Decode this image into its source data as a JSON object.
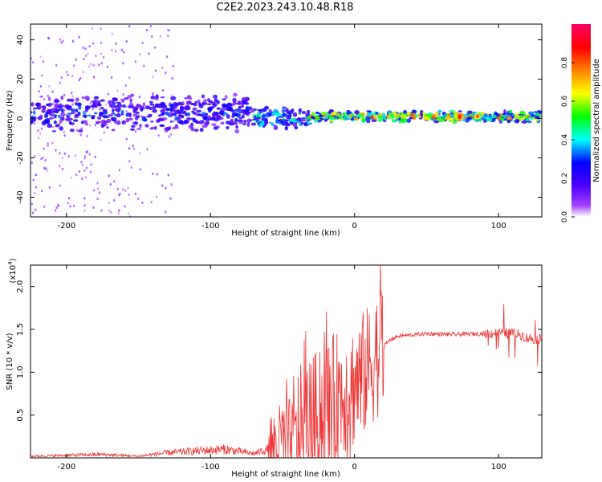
{
  "chart_data": [
    {
      "type": "heatmap",
      "title": "C2E2.2023.243.10.48.R18",
      "xlabel": "Height of straight line (km)",
      "ylabel": "Frequency (Hz)",
      "xlim": [
        -225,
        130
      ],
      "ylim": [
        -50,
        48
      ],
      "x_ticks": [
        -200,
        -100,
        0,
        100
      ],
      "y_ticks": [
        -40,
        -20,
        0,
        20,
        40
      ],
      "colorbar": {
        "label": "Normalized spectral amplitude",
        "range": [
          0.0,
          1.0
        ],
        "ticks": [
          0.0,
          0.2,
          0.4,
          0.6,
          0.8
        ],
        "colormap": [
          "#ffffff",
          "#8a00ff",
          "#0000ff",
          "#00ffff",
          "#00ff00",
          "#ffff00",
          "#ff8000",
          "#ff0000",
          "#ff0066"
        ]
      },
      "features": [
        {
          "x_range": [
            -225,
            -70
          ],
          "freq_center": 3,
          "freq_width": 10,
          "amplitude": 0.3
        },
        {
          "x_range": [
            -70,
            -30
          ],
          "freq_center": 0,
          "freq_width": 6,
          "amplitude": 0.45
        },
        {
          "x_range": [
            -30,
            130
          ],
          "freq_center": 1,
          "freq_width": 3,
          "amplitude": 0.75
        }
      ]
    },
    {
      "type": "line",
      "xlabel": "Height of straight line (km)",
      "ylabel": "SNR (10 * v/v)",
      "y_multiplier": "(x10",
      "y_multiplier_exp": "4",
      "xlim": [
        -225,
        130
      ],
      "ylim": [
        0,
        2.25
      ],
      "x_ticks": [
        -200,
        -100,
        0,
        100
      ],
      "y_ticks": [
        0.5,
        1.0,
        1.5,
        2.0
      ],
      "series_color": "#ee3333",
      "x": [
        -225,
        -200,
        -175,
        -150,
        -130,
        -110,
        -90,
        -70,
        -60,
        -50,
        -40,
        -30,
        -20,
        -15,
        -10,
        -5,
        0,
        5,
        10,
        15,
        20,
        25,
        30,
        50,
        70,
        90,
        100,
        110,
        115,
        120,
        130
      ],
      "values": [
        0.02,
        0.03,
        0.04,
        0.02,
        0.06,
        0.08,
        0.1,
        0.05,
        0.1,
        0.2,
        0.3,
        0.45,
        0.6,
        0.7,
        0.75,
        0.8,
        0.85,
        0.95,
        1.05,
        1.2,
        1.3,
        1.38,
        1.42,
        1.45,
        1.44,
        1.45,
        1.46,
        1.45,
        1.44,
        1.4,
        1.38
      ]
    }
  ]
}
